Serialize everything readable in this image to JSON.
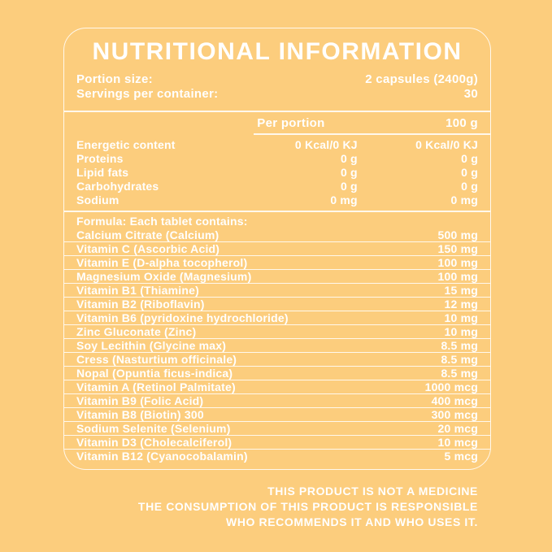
{
  "colors": {
    "background": "#FCCD7D",
    "text": "#FFFFFF",
    "line": "rgba(255,255,255,0.85)"
  },
  "title": "NUTRITIONAL INFORMATION",
  "summary": {
    "rows": [
      {
        "label": "Portion size:",
        "value": "2 capsules (2400g)"
      },
      {
        "label": "Servings per container:",
        "value": "30"
      }
    ]
  },
  "nutrient_table": {
    "columns": [
      "Per portion",
      "100 g"
    ],
    "rows": [
      {
        "label": "Energetic content",
        "per_portion": "0 Kcal/0 KJ",
        "per_100g": "0 Kcal/0 KJ"
      },
      {
        "label": "Proteins",
        "per_portion": "0 g",
        "per_100g": "0 g"
      },
      {
        "label": "Lipid fats",
        "per_portion": "0 g",
        "per_100g": "0 g"
      },
      {
        "label": "Carbohydrates",
        "per_portion": "0 g",
        "per_100g": "0 g"
      },
      {
        "label": "Sodium",
        "per_portion": "0 mg",
        "per_100g": "0 mg"
      }
    ]
  },
  "formula": {
    "heading": "Formula: Each tablet contains:",
    "rows": [
      {
        "label": "Calcium Citrate (Calcium)",
        "amount": "500 mg"
      },
      {
        "label": "Vitamin C (Ascorbic Acid)",
        "amount": "150 mg"
      },
      {
        "label": "Vitamin E (D-alpha tocopherol)",
        "amount": "100 mg"
      },
      {
        "label": "Magnesium Oxide (Magnesium)",
        "amount": "100 mg"
      },
      {
        "label": "Vitamin B1 (Thiamine)",
        "amount": "15 mg"
      },
      {
        "label": "Vitamin B2 (Riboflavin)",
        "amount": "12 mg"
      },
      {
        "label": "Vitamin B6 (pyridoxine hydrochloride)",
        "amount": "10 mg"
      },
      {
        "label": "Zinc Gluconate (Zinc)",
        "amount": "10 mg"
      },
      {
        "label": "Soy Lecithin (Glycine max)",
        "amount": "8.5 mg"
      },
      {
        "label": "Cress (Nasturtium officinale)",
        "amount": "8.5 mg"
      },
      {
        "label": "Nopal (Opuntia ficus-indica)",
        "amount": "8.5 mg"
      },
      {
        "label": "Vitamin A (Retinol Palmitate)",
        "amount": "1000 mcg"
      },
      {
        "label": "Vitamin B9 (Folic Acid)",
        "amount": "400 mcg"
      },
      {
        "label": "Vitamin B8 (Biotin) 300",
        "amount": "300 mcg"
      },
      {
        "label": "Sodium Selenite (Selenium)",
        "amount": "20 mcg"
      },
      {
        "label": "Vitamin D3 (Cholecalciferol)",
        "amount": "10 mcg"
      },
      {
        "label": "Vitamin B12 (Cyanocobalamin)",
        "amount": "5 mcg"
      }
    ]
  },
  "disclaimer": {
    "lines": [
      "THIS PRODUCT IS NOT A MEDICINE",
      "THE CONSUMPTION OF THIS PRODUCT IS RESPONSIBLE",
      "WHO RECOMMENDS IT AND WHO USES IT."
    ]
  }
}
